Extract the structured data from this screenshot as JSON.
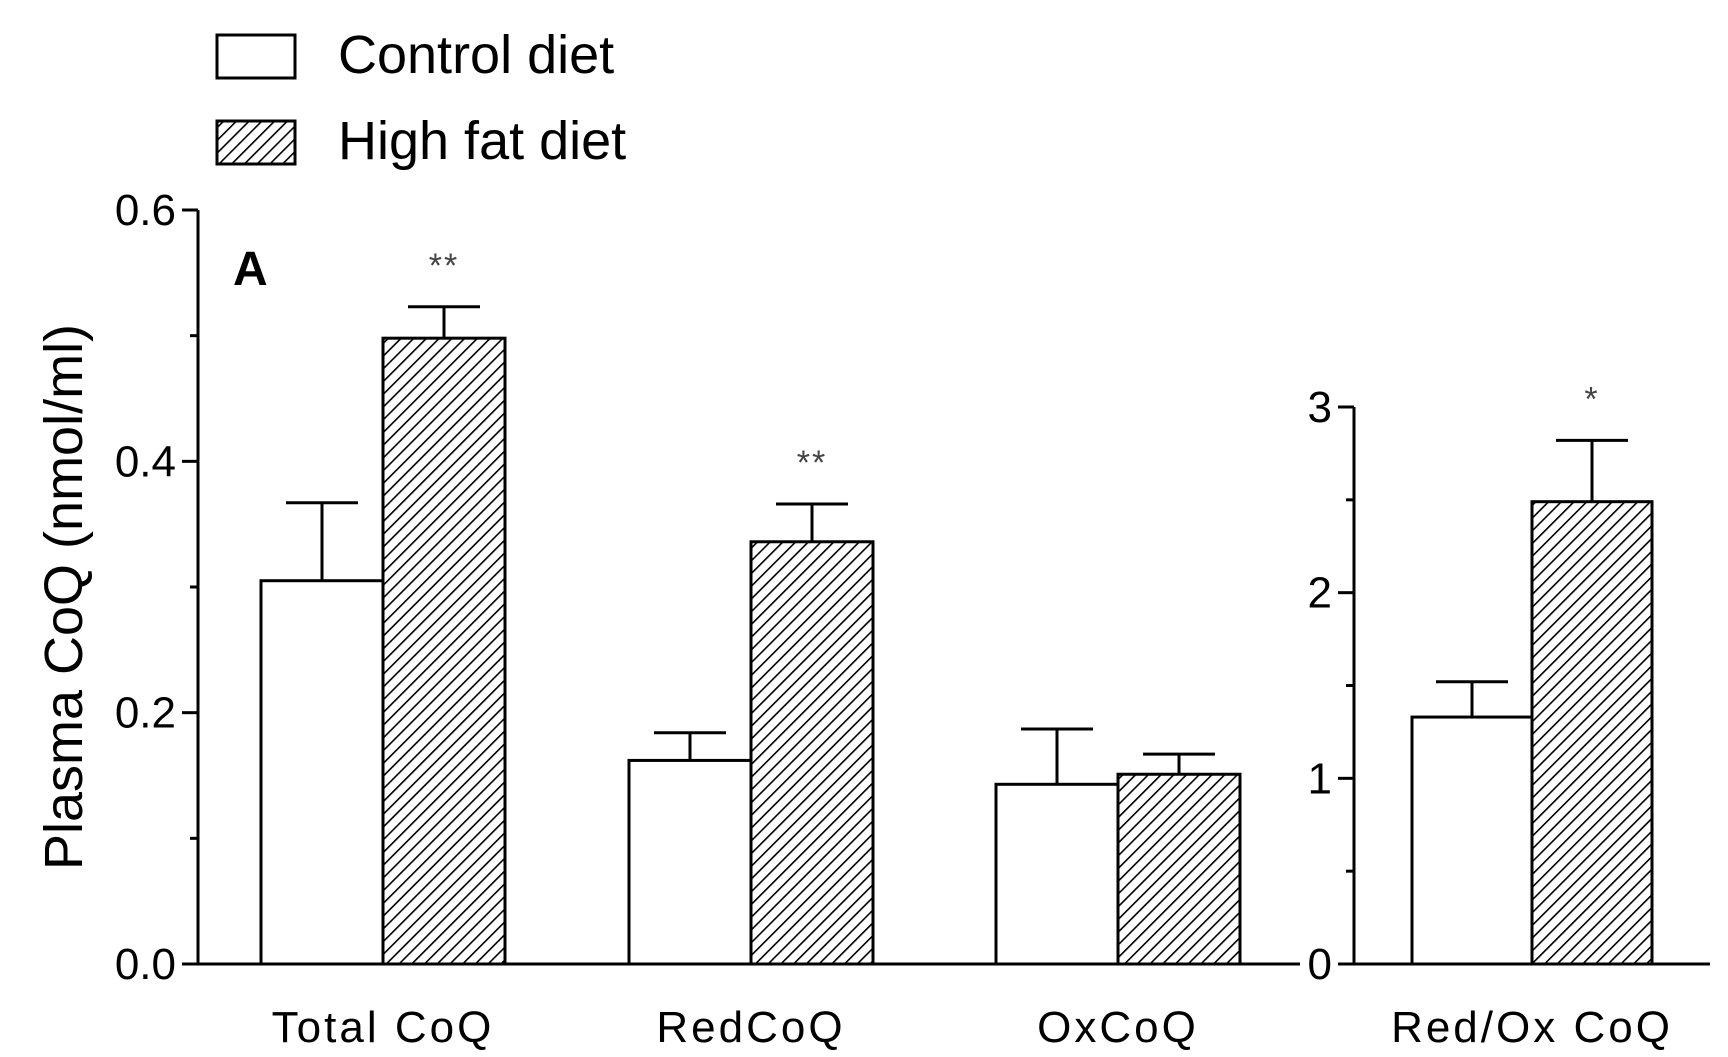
{
  "chart_data": [
    {
      "type": "bar",
      "panel_label": "A",
      "ylabel": "Plasma CoQ (nmol/ml)",
      "ylim": [
        0,
        0.6
      ],
      "yticks": [
        "0.0",
        "0.2",
        "0.4",
        "0.6"
      ],
      "categories": [
        "Total CoQ",
        "RedCoQ",
        "OxCoQ"
      ],
      "series": [
        {
          "name": "Control diet",
          "pattern": "open",
          "values": [
            0.305,
            0.162,
            0.143
          ],
          "errors": [
            0.062,
            0.022,
            0.044
          ]
        },
        {
          "name": "High fat diet",
          "pattern": "hatched",
          "values": [
            0.498,
            0.336,
            0.151
          ],
          "errors": [
            0.025,
            0.03,
            0.016
          ]
        }
      ],
      "annotations": [
        {
          "category": "Total CoQ",
          "series": "High fat diet",
          "text": "**"
        },
        {
          "category": "RedCoQ",
          "series": "High fat diet",
          "text": "**"
        }
      ],
      "legend": {
        "placement": "top-left",
        "entries": [
          "Control diet",
          "High fat diet"
        ]
      }
    },
    {
      "type": "bar",
      "ylabel": "",
      "ylim": [
        0,
        3
      ],
      "yticks": [
        "0",
        "1",
        "2",
        "3"
      ],
      "categories": [
        "Red/Ox CoQ"
      ],
      "series": [
        {
          "name": "Control diet",
          "pattern": "open",
          "values": [
            1.33
          ],
          "errors": [
            0.19
          ]
        },
        {
          "name": "High fat diet",
          "pattern": "hatched",
          "values": [
            2.49
          ],
          "errors": [
            0.33
          ]
        }
      ],
      "annotations": [
        {
          "category": "Red/Ox CoQ",
          "series": "High fat diet",
          "text": "*"
        }
      ]
    }
  ]
}
